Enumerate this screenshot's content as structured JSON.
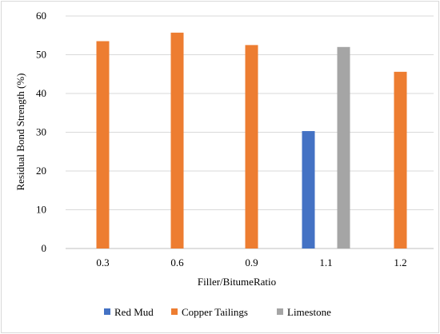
{
  "chart_data": {
    "type": "bar",
    "title": "",
    "xlabel": "Filler/BitumeRatio",
    "ylabel": "Residual Bond Strength (%)",
    "ylim": [
      0,
      60
    ],
    "yticks": [
      "0",
      "10",
      "20",
      "30",
      "40",
      "50",
      "60"
    ],
    "categories": [
      "0.3",
      "0.6",
      "0.9",
      "1.1",
      "1.2"
    ],
    "grid": "horizontal",
    "legend_position": "bottom",
    "series": [
      {
        "name": "Red Mud",
        "color": "#4472C4",
        "values": [
          null,
          null,
          null,
          30.3,
          null
        ]
      },
      {
        "name": "Copper Tailings",
        "color": "#ED7D31",
        "values": [
          53.5,
          55.7,
          52.5,
          null,
          45.6
        ]
      },
      {
        "name": "Limestone",
        "color": "#A5A5A5",
        "values": [
          null,
          null,
          null,
          52.0,
          null
        ]
      }
    ]
  }
}
